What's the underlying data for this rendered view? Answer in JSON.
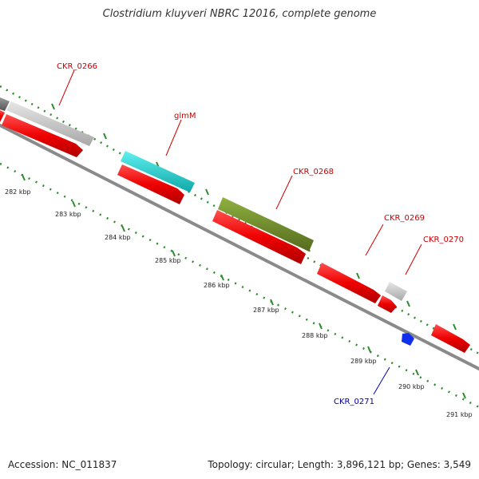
{
  "title": "Clostridium kluyveri NBRC 12016, complete genome",
  "accession": "Accession: NC_011837",
  "summary": "Topology: circular; Length: 3,896,121 bp; Genes: 3,549",
  "colors": {
    "cds": "#ee0000",
    "gene_label": "#cc0000",
    "ticks": "#2e8b2e",
    "backbone": "#888888",
    "cog_grey": "#c0c0c0",
    "cog_cyan": "#20c8c8",
    "cog_olive": "#6b8e23",
    "trna_blue": "#1030ee",
    "trna_label": "#0000aa"
  },
  "kbp_labels": [
    "282 kbp",
    "283 kbp",
    "284 kbp",
    "285 kbp",
    "286 kbp",
    "287 kbp",
    "288 kbp",
    "289 kbp",
    "290 kbp",
    "291 kbp"
  ],
  "gene_labels": {
    "ckr_0266": "CKR_0266",
    "glmm": "glmM",
    "ckr_0268": "CKR_0268",
    "ckr_0269": "CKR_0269",
    "ckr_0270": "CKR_0270",
    "ckr_0271": "CKR_0271"
  }
}
